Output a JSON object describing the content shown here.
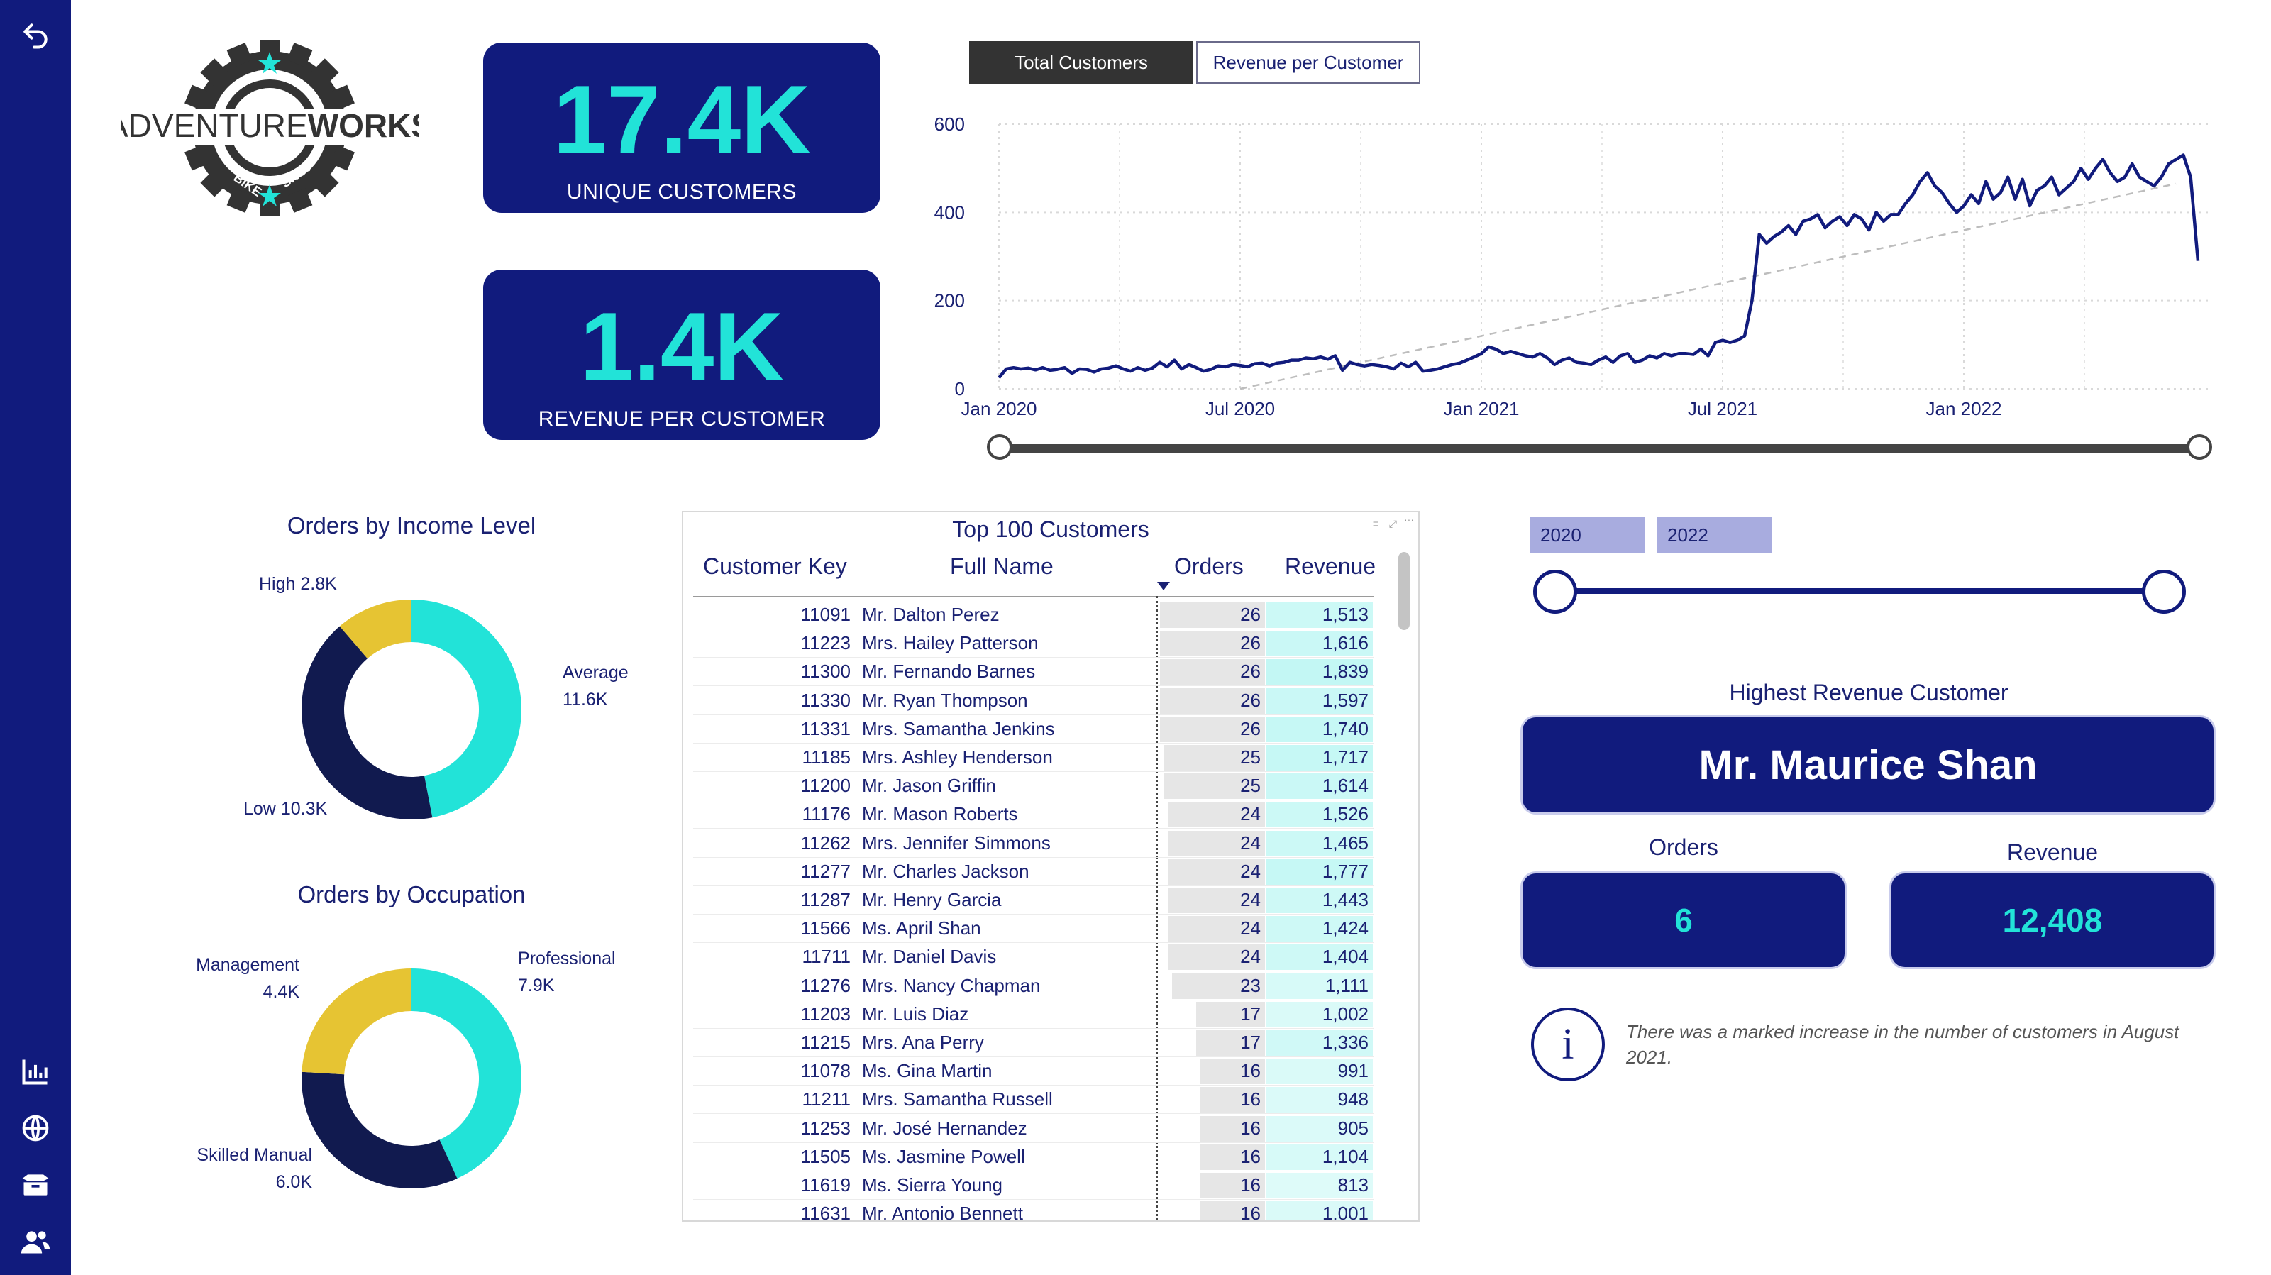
{
  "sidebar": {
    "icons": [
      "back-arrow-icon",
      "bar-chart-icon",
      "globe-icon",
      "box-icon",
      "people-icon"
    ]
  },
  "logo": {
    "text_left": "ADVENTURE",
    "text_right": "WORKS",
    "sub_left": "BIKE",
    "sub_right": "SHOP"
  },
  "kpis": {
    "unique_customers": {
      "value": "17.4K",
      "label": "UNIQUE CUSTOMERS"
    },
    "revenue_per_customer": {
      "value": "1.4K",
      "label": "REVENUE PER CUSTOMER"
    }
  },
  "toggle": {
    "active": "Total Customers",
    "inactive": "Revenue per Customer"
  },
  "line_chart": {
    "chart_data": {
      "type": "line",
      "yticks": [
        "600",
        "400",
        "200",
        "0"
      ],
      "ylim": [
        0,
        600
      ],
      "xticks": [
        "Jan 2020",
        "Jul 2020",
        "Jan 2021",
        "Jul 2021",
        "Jan 2022"
      ],
      "grid": true,
      "trendline": {
        "start": 0,
        "end": 465
      },
      "values": [
        25,
        45,
        48,
        45,
        47,
        43,
        48,
        42,
        44,
        48,
        35,
        45,
        44,
        38,
        45,
        47,
        52,
        45,
        40,
        48,
        42,
        47,
        60,
        50,
        65,
        45,
        55,
        48,
        40,
        44,
        52,
        50,
        55,
        53,
        50,
        57,
        58,
        52,
        58,
        60,
        65,
        65,
        70,
        68,
        72,
        67,
        75,
        42,
        60,
        55,
        52,
        55,
        53,
        50,
        45,
        58,
        50,
        60,
        40,
        42,
        45,
        50,
        55,
        58,
        65,
        72,
        80,
        95,
        90,
        80,
        85,
        80,
        75,
        72,
        80,
        70,
        55,
        65,
        70,
        60,
        58,
        55,
        65,
        72,
        60,
        75,
        80,
        60,
        65,
        75,
        70,
        80,
        75,
        80,
        80,
        78,
        90,
        75,
        105,
        110,
        105,
        110,
        120,
        200,
        350,
        330,
        345,
        355,
        370,
        350,
        380,
        385,
        395,
        365,
        380,
        390,
        370,
        395,
        385,
        360,
        400,
        380,
        395,
        395,
        420,
        440,
        470,
        490,
        460,
        445,
        420,
        400,
        415,
        440,
        420,
        470,
        430,
        445,
        480,
        430,
        475,
        415,
        450,
        460,
        480,
        440,
        455,
        470,
        500,
        475,
        500,
        520,
        490,
        470,
        480,
        510,
        480,
        470,
        460,
        480,
        510,
        520,
        530,
        480,
        290
      ]
    }
  },
  "income_chart": {
    "title": "Orders by Income Level",
    "chart_data": {
      "type": "pie",
      "donut": true,
      "slices": [
        {
          "name": "Average",
          "value": "11.6K",
          "amount": 11.6,
          "color": "#22e3d8"
        },
        {
          "name": "Low",
          "value": "10.3K",
          "amount": 10.3,
          "color": "#111a4f"
        },
        {
          "name": "High",
          "value": "2.8K",
          "amount": 2.8,
          "color": "#e6c433"
        }
      ]
    }
  },
  "occupation_chart": {
    "title": "Orders by Occupation",
    "chart_data": {
      "type": "pie",
      "donut": true,
      "slices": [
        {
          "name": "Professional",
          "value": "7.9K",
          "amount": 7.9,
          "color": "#22e3d8"
        },
        {
          "name": "Skilled Manual",
          "value": "6.0K",
          "amount": 6.0,
          "color": "#111a4f"
        },
        {
          "name": "Management",
          "value": "4.4K",
          "amount": 4.4,
          "color": "#e6c433"
        }
      ]
    }
  },
  "table": {
    "title": "Top 100 Customers",
    "columns": [
      "Customer Key",
      "Full Name",
      "Orders",
      "Revenue"
    ],
    "rows": [
      [
        "11091",
        "Mr. Dalton Perez",
        "26",
        "1,513"
      ],
      [
        "11223",
        "Mrs. Hailey Patterson",
        "26",
        "1,616"
      ],
      [
        "11300",
        "Mr. Fernando Barnes",
        "26",
        "1,839"
      ],
      [
        "11330",
        "Mr. Ryan Thompson",
        "26",
        "1,597"
      ],
      [
        "11331",
        "Mrs. Samantha Jenkins",
        "26",
        "1,740"
      ],
      [
        "11185",
        "Mrs. Ashley Henderson",
        "25",
        "1,717"
      ],
      [
        "11200",
        "Mr. Jason Griffin",
        "25",
        "1,614"
      ],
      [
        "11176",
        "Mr. Mason Roberts",
        "24",
        "1,526"
      ],
      [
        "11262",
        "Mrs. Jennifer Simmons",
        "24",
        "1,465"
      ],
      [
        "11277",
        "Mr. Charles Jackson",
        "24",
        "1,777"
      ],
      [
        "11287",
        "Mr. Henry Garcia",
        "24",
        "1,443"
      ],
      [
        "11566",
        "Ms. April Shan",
        "24",
        "1,424"
      ],
      [
        "11711",
        "Mr. Daniel Davis",
        "24",
        "1,404"
      ],
      [
        "11276",
        "Mrs. Nancy Chapman",
        "23",
        "1,111"
      ],
      [
        "11203",
        "Mr. Luis Diaz",
        "17",
        "1,002"
      ],
      [
        "11215",
        "Mrs. Ana Perry",
        "17",
        "1,336"
      ],
      [
        "11078",
        "Ms. Gina Martin",
        "16",
        "991"
      ],
      [
        "11211",
        "Mrs. Samantha Russell",
        "16",
        "948"
      ],
      [
        "11253",
        "Mr. José Hernandez",
        "16",
        "905"
      ],
      [
        "11505",
        "Ms. Jasmine Powell",
        "16",
        "1,104"
      ],
      [
        "11619",
        "Ms. Sierra Young",
        "16",
        "813"
      ],
      [
        "11631",
        "Mr. Antonio Bennett",
        "16",
        "1,001"
      ]
    ]
  },
  "year_slicer": {
    "start": "2020",
    "end": "2022"
  },
  "highest_customer": {
    "title": "Highest Revenue Customer",
    "name": "Mr. Maurice Shan",
    "orders_label": "Orders",
    "orders_value": "6",
    "revenue_label": "Revenue",
    "revenue_value": "12,408"
  },
  "insight": {
    "text": "There was a marked increase in the number of customers in August 2021."
  }
}
